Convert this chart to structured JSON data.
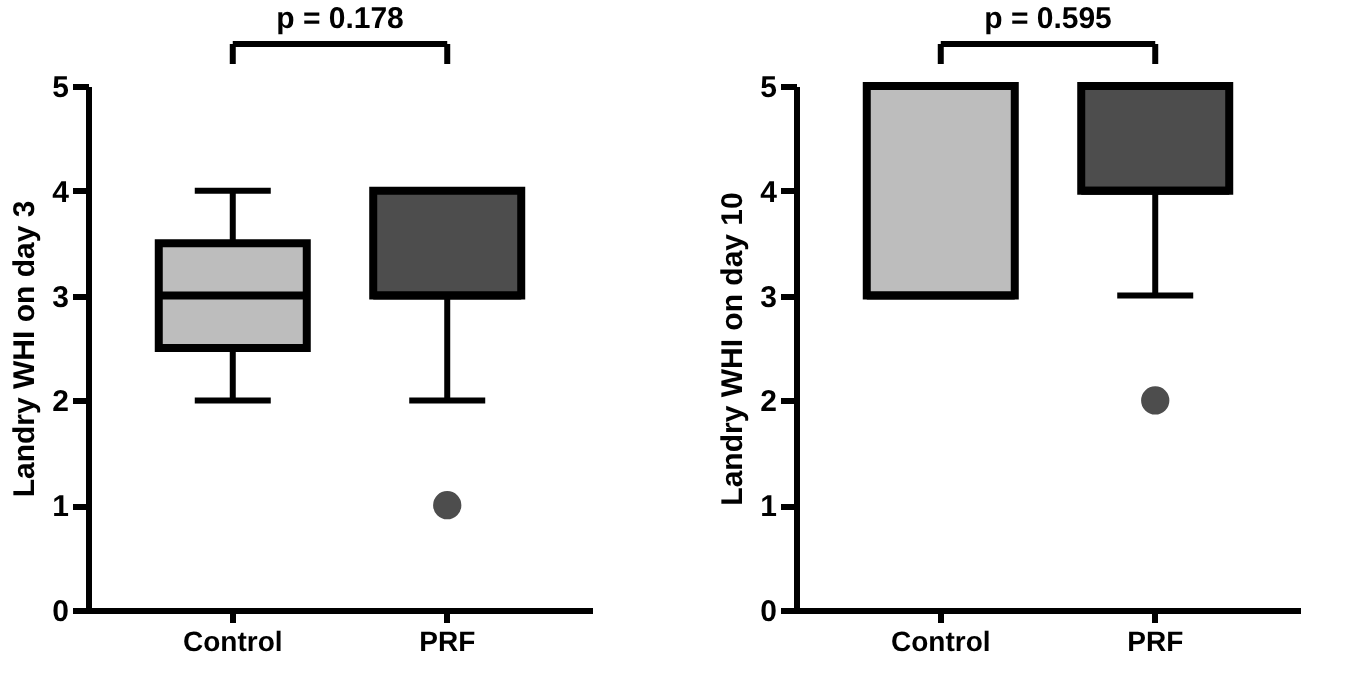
{
  "chart_data": [
    {
      "type": "box",
      "categories": [
        "Control",
        "PRF"
      ],
      "ylabel": "Landry WHI on day 3",
      "ylim": [
        0,
        5
      ],
      "yticks": [
        0,
        1,
        2,
        3,
        4,
        5
      ],
      "colors": [
        "#bdbdbd",
        "#4d4d4d"
      ],
      "annotations": [
        "p = 0.178"
      ],
      "boxes": [
        {
          "low": 2,
          "q1": 2.5,
          "median": 3,
          "q3": 3.5,
          "high": 4
        },
        {
          "low": 2,
          "q1": 3,
          "median": 3,
          "q3": 4,
          "high": 4,
          "outliers": [
            1
          ]
        }
      ]
    },
    {
      "type": "box",
      "categories": [
        "Control",
        "PRF"
      ],
      "ylabel": "Landry WHI on day 10",
      "ylim": [
        0,
        5
      ],
      "yticks": [
        0,
        1,
        2,
        3,
        4,
        5
      ],
      "colors": [
        "#bdbdbd",
        "#4d4d4d"
      ],
      "annotations": [
        "p = 0.595"
      ],
      "boxes": [
        {
          "low": 3,
          "q1": 3,
          "median": 3,
          "q3": 5,
          "high": 5
        },
        {
          "low": 3,
          "q1": 4,
          "median": 4,
          "q3": 5,
          "high": 5,
          "outliers": [
            2
          ]
        }
      ]
    }
  ]
}
